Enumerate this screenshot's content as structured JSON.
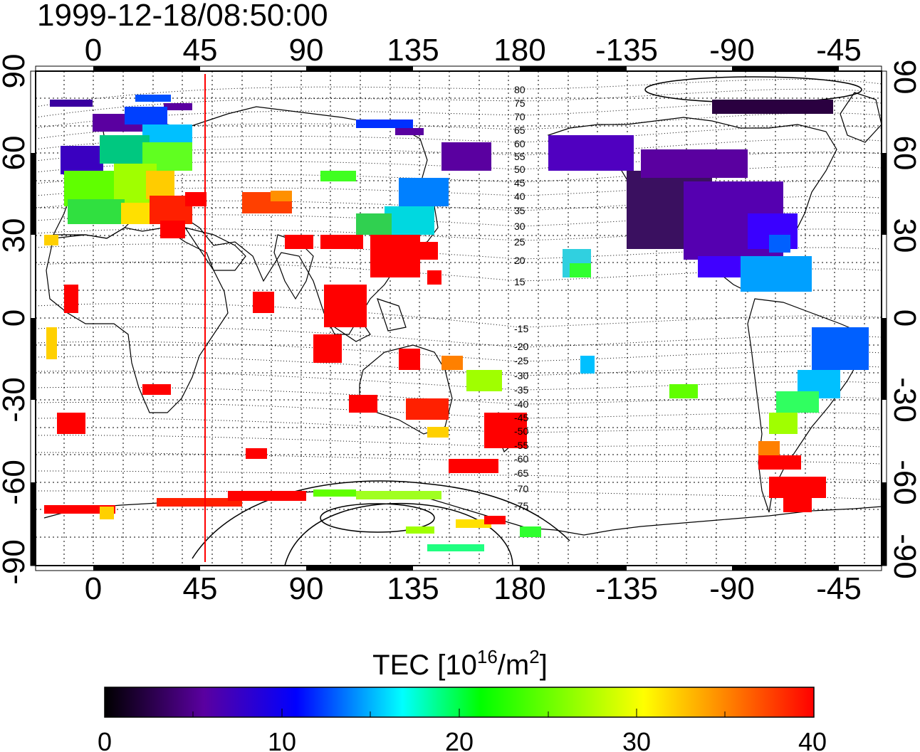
{
  "title": "1999-12-18/08:50:00",
  "map": {
    "x_tick_labels": [
      "0",
      "45",
      "90",
      "135",
      "180",
      "-135",
      "-90",
      "-45"
    ],
    "y_tick_labels": [
      "90",
      "60",
      "30",
      "0",
      "-30",
      "-60",
      "-90"
    ],
    "magnetic_latitude_labels": [
      "80",
      "75",
      "70",
      "65",
      "60",
      "55",
      "50",
      "45",
      "40",
      "35",
      "30",
      "25",
      "20",
      "15",
      "-15",
      "-20",
      "-25",
      "-30",
      "-35",
      "-40",
      "-45",
      "-50",
      "-55",
      "-60",
      "-65",
      "-70",
      "-75"
    ],
    "terminator_longitude": 47,
    "terminator_color": "#ff0000"
  },
  "colorbar": {
    "title_main": "TEC  [10",
    "title_sup1": "16",
    "title_mid": "/m",
    "title_sup2": "2",
    "title_end": "]",
    "tick_labels": [
      "0",
      "10",
      "20",
      "30",
      "40"
    ],
    "range": [
      0,
      40
    ],
    "colors": [
      "#000000",
      "#5a00a0",
      "#0000ff",
      "#00ffff",
      "#00ff00",
      "#ffff00",
      "#ff8000",
      "#ff0000"
    ]
  }
}
